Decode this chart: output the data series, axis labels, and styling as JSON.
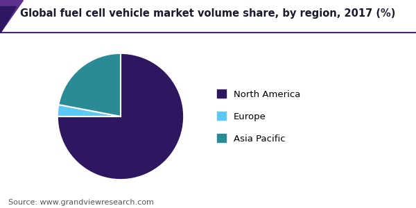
{
  "title": "Global fuel cell vehicle market volume share, by region, 2017 (%)",
  "labels": [
    "North America",
    "Europe",
    "Asia Pacific"
  ],
  "values": [
    75,
    3,
    22
  ],
  "colors": [
    "#2e1760",
    "#5bc8f5",
    "#2a8a96"
  ],
  "source_text": "Source: www.grandviewresearch.com",
  "background_color": "#ffffff",
  "title_fontsize": 10.5,
  "legend_fontsize": 9.5,
  "source_fontsize": 8,
  "startangle": 90,
  "figsize": [
    6.0,
    3.0
  ],
  "dpi": 100,
  "header_line_color": "#4a2080",
  "triangle_color1": "#5c3090",
  "triangle_color2": "#2e1760"
}
